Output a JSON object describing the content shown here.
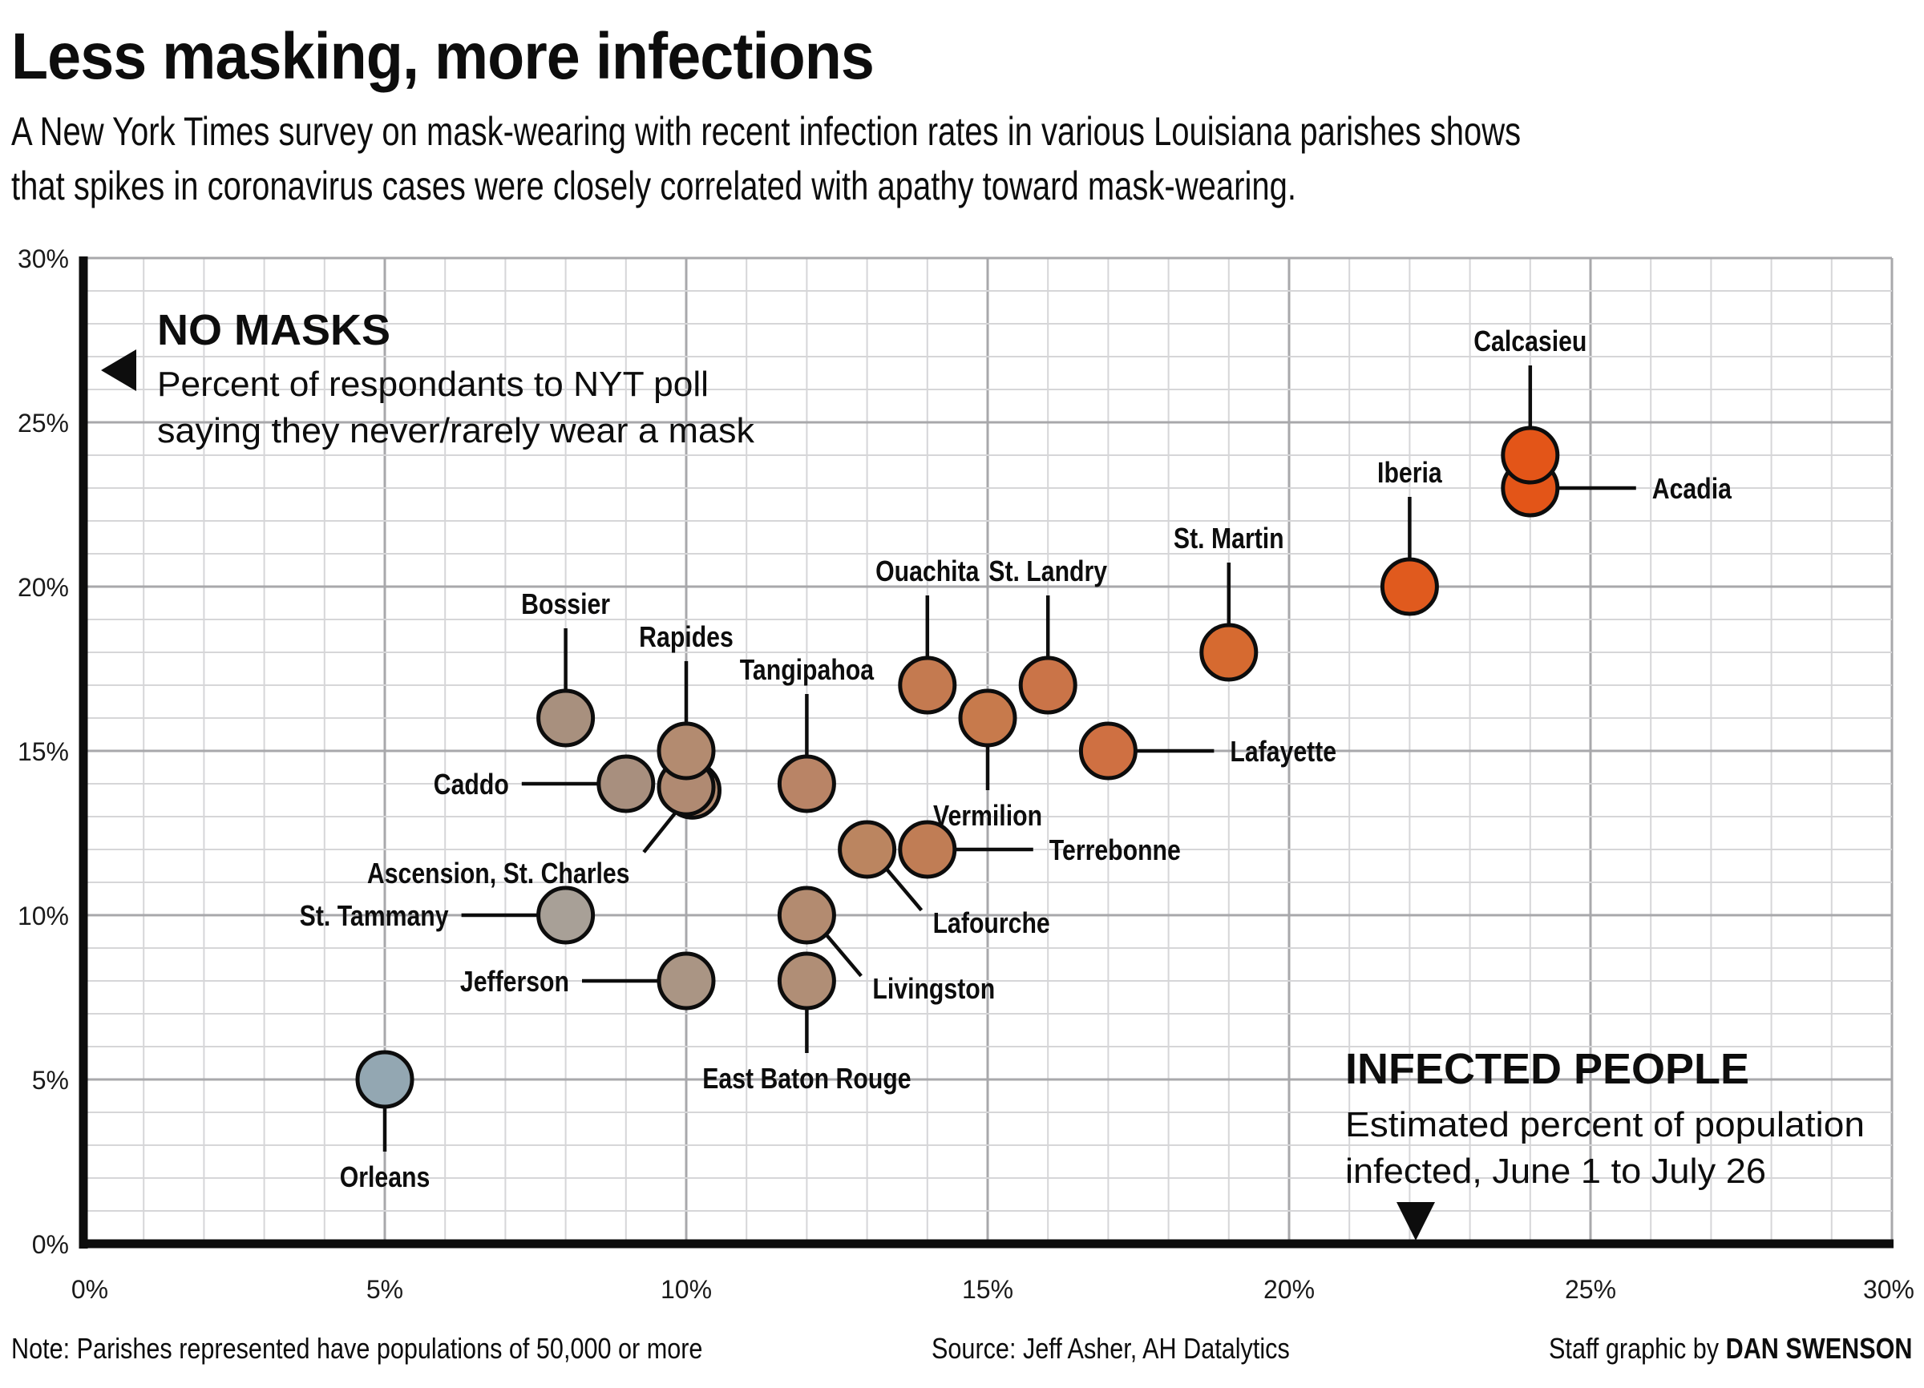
{
  "title": "Less masking, more infections",
  "subtitle_lines": [
    "A New York Times survey on mask-wearing with recent infection rates in various Louisiana parishes shows",
    "that spikes in coronavirus cases were closely correlated with apathy toward mask-wearing."
  ],
  "annotations": {
    "y_head": "NO MASKS",
    "y_body": [
      "Percent of respondants to NYT poll",
      "saying they never/rarely wear a mask"
    ],
    "x_head": "INFECTED PEOPLE",
    "x_body": [
      "Estimated percent of population",
      "infected, June 1 to July 26"
    ]
  },
  "footer": {
    "note": "Note: Parishes represented have populations of 50,000 or more",
    "source": "Source: Jeff Asher, AH Datalytics",
    "credit_prefix": "Staff graphic by ",
    "credit_name": "DAN SWENSON"
  },
  "colors": {
    "gray_blue": "#93a7b2",
    "gray": "#a8a097",
    "tan": "#ab917e",
    "brown": "#b8886a",
    "rust": "#c27a50",
    "orange": "#d66a30",
    "bright_orange": "#e35518"
  },
  "chart_data": {
    "type": "scatter",
    "title": "Less masking, more infections",
    "xlabel": "Estimated percent of population infected, June 1 to July 26",
    "ylabel": "Percent of respondants to NYT poll saying they never/rarely wear a mask",
    "xlim": [
      0,
      30
    ],
    "ylim": [
      0,
      30
    ],
    "x_ticks": [
      "0%",
      "5%",
      "10%",
      "15%",
      "20%",
      "25%",
      "30%"
    ],
    "y_ticks": [
      "0%",
      "5%",
      "10%",
      "15%",
      "20%",
      "25%",
      "30%"
    ],
    "grid": true,
    "points": [
      {
        "name": "Orleans",
        "x": 5,
        "y": 5,
        "color": "#93a7b2",
        "label_side": "below"
      },
      {
        "name": "St. Tammany",
        "x": 8,
        "y": 10,
        "color": "#a8a097",
        "label_side": "left"
      },
      {
        "name": "Jefferson",
        "x": 10,
        "y": 8,
        "color": "#aa9584",
        "label_side": "left"
      },
      {
        "name": "Bossier",
        "x": 8,
        "y": 16,
        "color": "#a8907e",
        "label_side": "above"
      },
      {
        "name": "Caddo",
        "x": 9,
        "y": 14,
        "color": "#a88f7e",
        "label_side": "left"
      },
      {
        "name": "Ascension",
        "x": 10,
        "y": 13.9,
        "color": "#b08a72",
        "label_side": "none"
      },
      {
        "name": "St. Charles",
        "x": 10.1,
        "y": 13.8,
        "color": "#b38b70",
        "label_side": "below-left"
      },
      {
        "name": "Rapides",
        "x": 10,
        "y": 15,
        "color": "#b38b70",
        "label_side": "above"
      },
      {
        "name": "East Baton Rouge",
        "x": 12,
        "y": 8,
        "color": "#b08e76",
        "label_side": "below"
      },
      {
        "name": "Livingston",
        "x": 12,
        "y": 10,
        "color": "#b38b70",
        "label_side": "below-right"
      },
      {
        "name": "Tangipahoa",
        "x": 12,
        "y": 14,
        "color": "#b98466",
        "label_side": "above"
      },
      {
        "name": "Lafourche",
        "x": 13,
        "y": 12,
        "color": "#bb8560",
        "label_side": "below-right"
      },
      {
        "name": "Terrebonne",
        "x": 14,
        "y": 12,
        "color": "#c07d55",
        "label_side": "right"
      },
      {
        "name": "Ouachita",
        "x": 14,
        "y": 17,
        "color": "#c47a50",
        "label_side": "above"
      },
      {
        "name": "Vermilion",
        "x": 15,
        "y": 16,
        "color": "#c77a4c",
        "label_side": "below"
      },
      {
        "name": "St. Landry",
        "x": 16,
        "y": 17,
        "color": "#ca7448",
        "label_side": "above"
      },
      {
        "name": "Lafayette",
        "x": 17,
        "y": 15,
        "color": "#cf7042",
        "label_side": "right"
      },
      {
        "name": "St. Martin",
        "x": 19,
        "y": 18,
        "color": "#d66a30",
        "label_side": "above"
      },
      {
        "name": "Iberia",
        "x": 22,
        "y": 20,
        "color": "#e05a1e",
        "label_side": "above"
      },
      {
        "name": "Acadia",
        "x": 24,
        "y": 23,
        "color": "#e35518",
        "label_side": "right"
      },
      {
        "name": "Calcasieu",
        "x": 24,
        "y": 24,
        "color": "#e35518",
        "label_side": "above"
      }
    ],
    "point_labels": {
      "ascension_st_charles": "Ascension, St. Charles"
    }
  }
}
